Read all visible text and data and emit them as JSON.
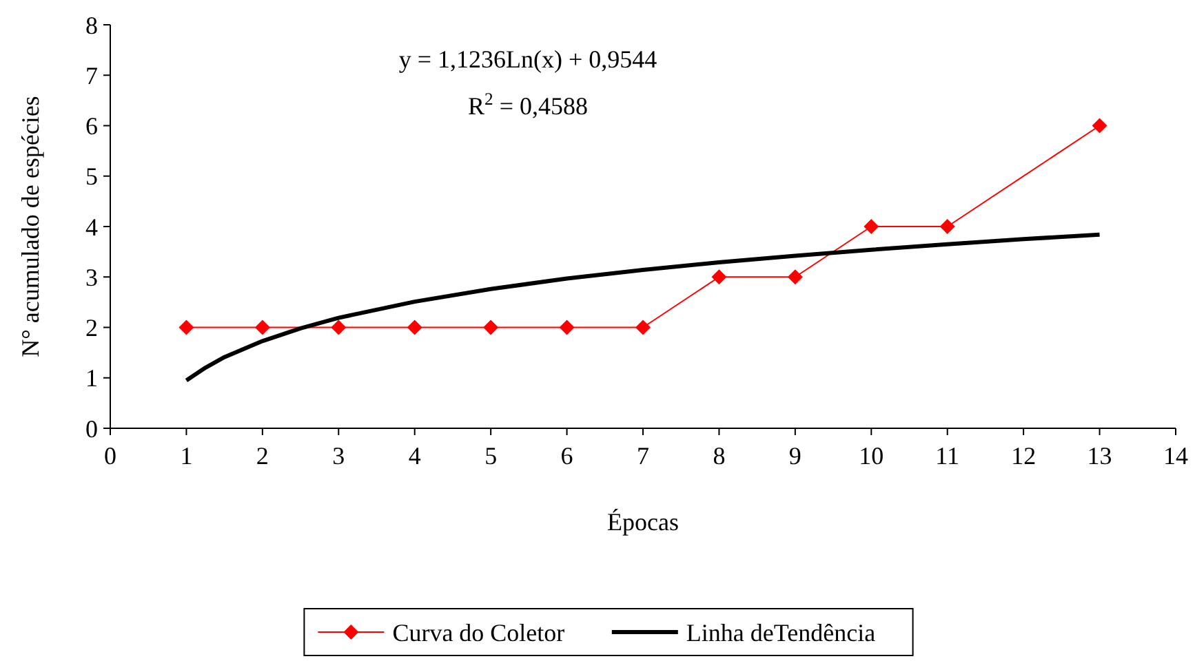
{
  "chart_data": {
    "type": "line",
    "xlabel": "Épocas",
    "ylabel": "N° acumulado de espécies",
    "annotations": [
      "y = 1,1236Ln(x) + 0,9544",
      "R$^{2}$ = 0,4588"
    ],
    "xlim": [
      0,
      14
    ],
    "xticks": [
      0,
      1,
      2,
      3,
      4,
      5,
      6,
      7,
      8,
      9,
      10,
      11,
      12,
      13,
      14
    ],
    "ylim": [
      0,
      8
    ],
    "yticks": [
      0,
      1,
      2,
      3,
      4,
      5,
      6,
      7,
      8
    ],
    "grid": false,
    "legend": "bottom",
    "series": [
      {
        "name": "Curva do Coletor",
        "color": "#ff0000",
        "marker": "diamond",
        "line_style": "solid",
        "x": [
          1,
          2,
          3,
          4,
          5,
          6,
          7,
          8,
          9,
          10,
          11,
          13
        ],
        "values": [
          2,
          2,
          2,
          2,
          2,
          2,
          2,
          3,
          3,
          4,
          4,
          6
        ]
      },
      {
        "name": "Linha deTendência",
        "color": "#000000",
        "marker": "none",
        "line_style": "solid",
        "x": [
          1,
          1.25,
          1.5,
          2,
          2.5,
          3,
          4,
          5,
          6,
          7,
          8,
          9,
          10,
          11,
          12,
          13
        ],
        "values": [
          0.95,
          1.2,
          1.41,
          1.73,
          1.98,
          2.19,
          2.51,
          2.76,
          2.97,
          3.14,
          3.29,
          3.42,
          3.54,
          3.65,
          3.75,
          3.84
        ]
      }
    ]
  }
}
